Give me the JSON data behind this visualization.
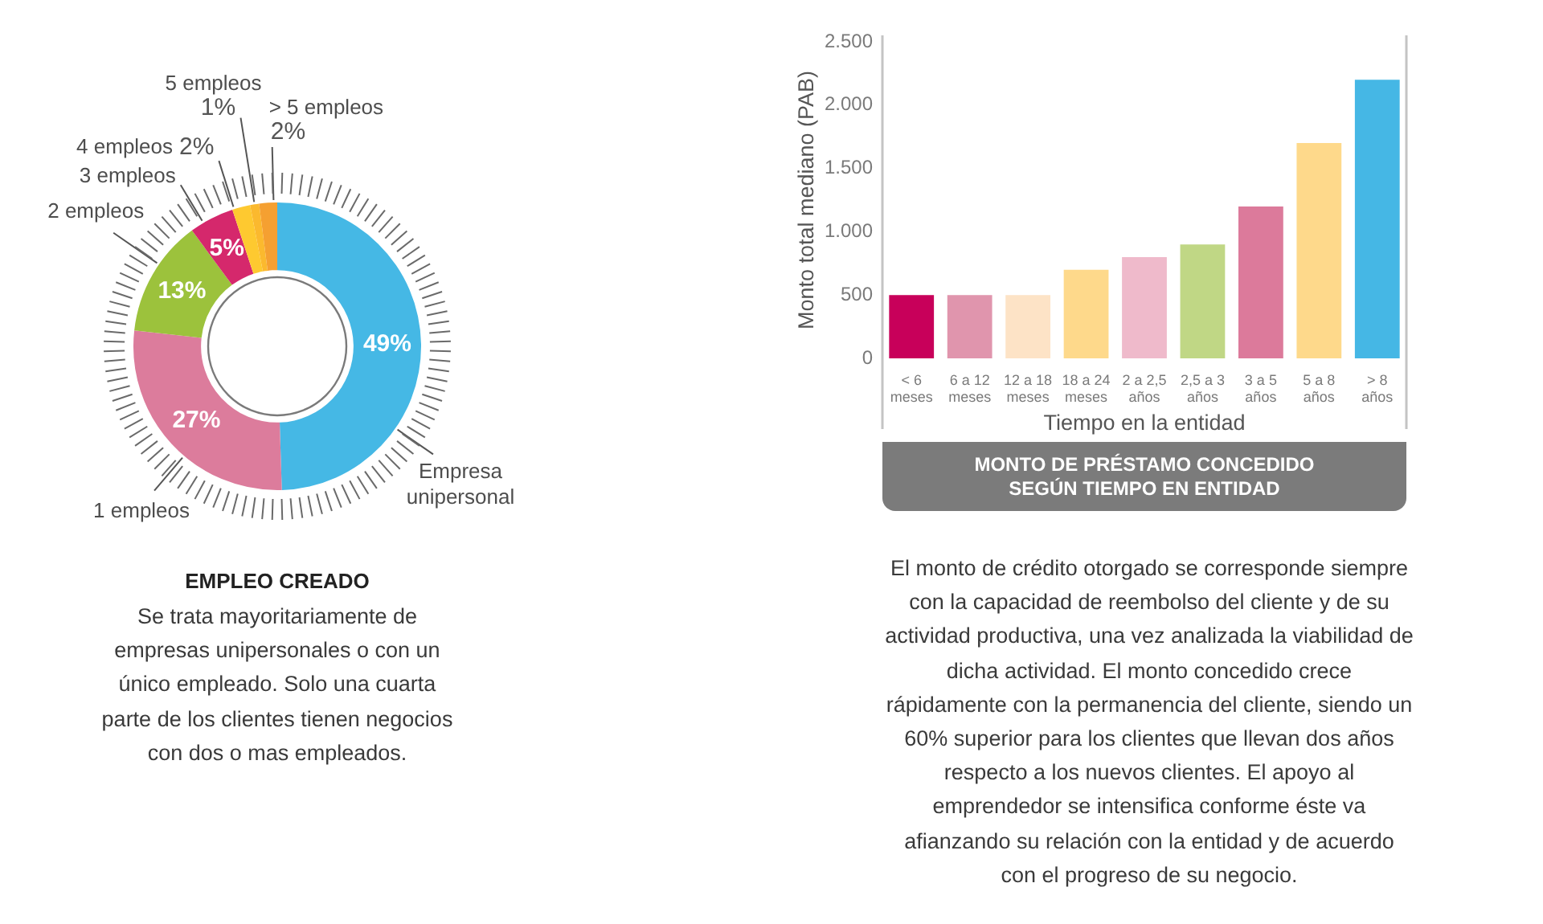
{
  "chart_data": [
    {
      "type": "donut",
      "title": "EMPLEO CREADO",
      "categories": [
        "Empresa unipersonal",
        "1 empleos",
        "2 empleos",
        "3 empleos",
        "4 empleos",
        "5 empleos",
        "> 5 empleos"
      ],
      "values": [
        49,
        27,
        13,
        5,
        2,
        1,
        2
      ],
      "value_labels": [
        "49%",
        "27%",
        "13%",
        "5%",
        "2%",
        "1%",
        "2%"
      ],
      "colors": [
        "#45b8e5",
        "#dc7c9c",
        "#9cc23c",
        "#d5286c",
        "#fec930",
        "#fbb92e",
        "#f5a031"
      ],
      "annotations": [
        "Se trata mayoritariamente de empresas unipersonales o con un único empleado. Solo una cuarta parte de los clientes tienen negocios con dos o mas empleados."
      ]
    },
    {
      "type": "bar",
      "title": "MONTO DE PRÉSTAMO CONCEDIDO SEGÚN TIEMPO EN ENTIDAD",
      "xlabel": "Tiempo en la entidad",
      "ylabel": "Monto total mediano (PAB)",
      "categories": [
        "< 6 meses",
        "6 a 12 meses",
        "12 a 18 meses",
        "18 a 24 meses",
        "2 a 2,5 años",
        "2,5 a 3 años",
        "3 a 5 años",
        "5 a 8 años",
        "> 8 años"
      ],
      "values": [
        500,
        500,
        500,
        700,
        800,
        900,
        1200,
        1700,
        2200
      ],
      "colors": [
        "#c8005a",
        "#e095ad",
        "#fde3c6",
        "#fed98b",
        "#efbacb",
        "#c0d785",
        "#dc7a9b",
        "#fed98b",
        "#45b7e5"
      ],
      "ylim": [
        0,
        2500
      ],
      "yticks": [
        0,
        500,
        {
          "value": 1000,
          "label": "1.000"
        },
        {
          "value": 1500,
          "label": "1.500"
        },
        {
          "value": 2000,
          "label": "2.000"
        },
        {
          "value": 2500,
          "label": "2.500"
        }
      ],
      "annotations": [
        "El monto de crédito otorgado se corresponde siempre con la capacidad de reembolso del cliente y de su actividad productiva, una vez analizada la viabilidad de dicha actividad. El monto concedido crece rápidamente con la permanencia del cliente, siendo un 60% superior para los clientes que llevan dos años  respecto a los nuevos clientes. El apoyo al emprendedor se intensifica conforme éste va afianzando su relación con la entidad y de acuerdo con el progreso de su  negocio."
      ]
    }
  ]
}
